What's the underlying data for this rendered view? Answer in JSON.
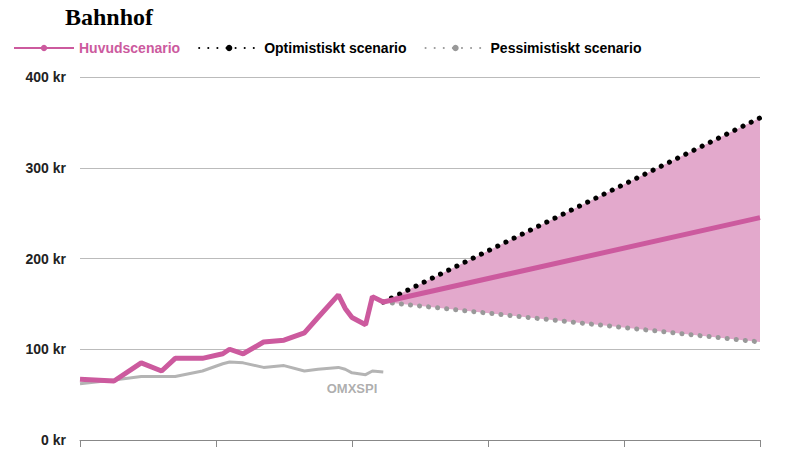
{
  "chart_data": {
    "type": "line",
    "title": "Bahnhof",
    "x": [
      0,
      5,
      9,
      12,
      14,
      18,
      21,
      22,
      24,
      27,
      30,
      33,
      35,
      38,
      39,
      40,
      42,
      43,
      44.6,
      100
    ],
    "xlim": [
      0,
      100
    ],
    "xticks": [
      0,
      20,
      40,
      60,
      80,
      100
    ],
    "ylim": [
      0,
      400
    ],
    "yticks": [
      {
        "value": 0,
        "label": "0 kr"
      },
      {
        "value": 100,
        "label": "100 kr"
      },
      {
        "value": 200,
        "label": "200 kr"
      },
      {
        "value": 300,
        "label": "300 kr"
      },
      {
        "value": 400,
        "label": "400 kr"
      }
    ],
    "grid": true,
    "tick_labels": "y",
    "legend": "top",
    "series": [
      {
        "name": "Huvudscenario",
        "color": "#cc5a9e",
        "line_style": "solid",
        "values": [
          67,
          65,
          85,
          76,
          90,
          90,
          95,
          100,
          95,
          108,
          110,
          118,
          135,
          160,
          145,
          135,
          127,
          158,
          152,
          245
        ]
      },
      {
        "name": "Optimistiskt scenario",
        "color": "#000000",
        "line_style": "dotted",
        "values": [
          null,
          null,
          null,
          null,
          null,
          null,
          null,
          null,
          null,
          null,
          null,
          null,
          null,
          null,
          null,
          null,
          null,
          null,
          152,
          355
        ]
      },
      {
        "name": "Pessimistiskt scenario",
        "color": "#999999",
        "line_style": "dotted",
        "values": [
          null,
          null,
          null,
          null,
          null,
          null,
          null,
          null,
          null,
          null,
          null,
          null,
          null,
          null,
          null,
          null,
          null,
          null,
          152,
          108
        ]
      },
      {
        "color": "#b4b4b4",
        "line_style": "solid",
        "values": [
          62,
          66,
          70,
          70,
          70,
          76,
          84,
          86,
          85,
          80,
          82,
          76,
          78,
          80,
          78,
          74,
          72,
          76,
          75,
          null
        ]
      }
    ],
    "band": {
      "between": [
        "Optimistiskt scenario",
        "Pessimistiskt scenario"
      ],
      "color": "#e3a9cc"
    },
    "annotations": [
      {
        "text": "OMXSPI",
        "x": 40,
        "y": 57,
        "color": "#999999"
      }
    ]
  }
}
